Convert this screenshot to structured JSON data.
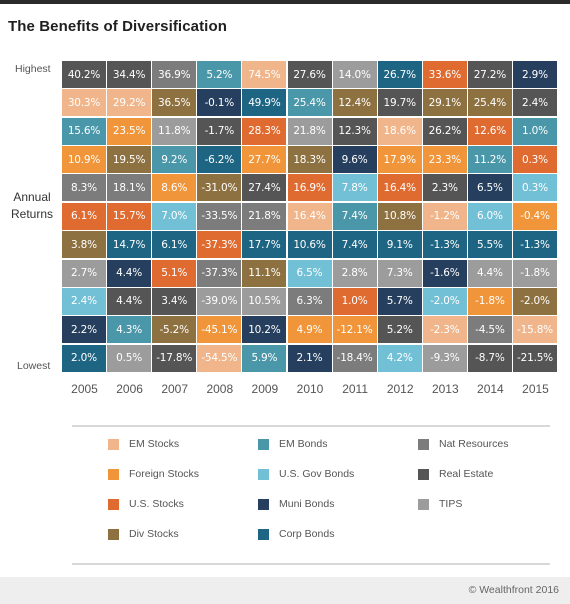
{
  "title": "The Benefits of Diversification",
  "labels": {
    "highest": "Highest",
    "lowest": "Lowest",
    "annual_line1": "Annual",
    "annual_line2": "Returns"
  },
  "copyright": "© Wealthfront 2016",
  "colors": {
    "EM Stocks": "#f0b58a",
    "Foreign Stocks": "#f0953a",
    "U.S. Stocks": "#e06b30",
    "Div Stocks": "#8e7140",
    "EM Bonds": "#4a97a9",
    "U.S. Gov Bonds": "#72c0d6",
    "Muni Bonds": "#263f5e",
    "Corp Bonds": "#1e6583",
    "Nat Resources": "#7c7c7c",
    "Real Estate": "#555555",
    "TIPS": "#9c9c9c"
  },
  "legend": [
    [
      "EM Stocks",
      "Foreign Stocks",
      "U.S. Stocks",
      "Div Stocks"
    ],
    [
      "EM Bonds",
      "U.S. Gov Bonds",
      "Muni Bonds",
      "Corp Bonds"
    ],
    [
      "Nat Resources",
      "Real Estate",
      "TIPS"
    ]
  ],
  "chart_data": {
    "type": "table",
    "title": "The Benefits of Diversification",
    "ylabel": "Annual Returns",
    "row_labels": {
      "top": "Highest",
      "bottom": "Lowest"
    },
    "years": [
      "2005",
      "2006",
      "2007",
      "2008",
      "2009",
      "2010",
      "2011",
      "2012",
      "2013",
      "2014",
      "2015"
    ],
    "columns": [
      [
        [
          "Real Estate",
          "40.2%"
        ],
        [
          "EM Stocks",
          "30.3%"
        ],
        [
          "EM Bonds",
          "15.6%"
        ],
        [
          "Foreign Stocks",
          "10.9%"
        ],
        [
          "Nat Resources",
          "8.3%"
        ],
        [
          "U.S. Stocks",
          "6.1%"
        ],
        [
          "Div Stocks",
          "3.8%"
        ],
        [
          "TIPS",
          "2.7%"
        ],
        [
          "U.S. Gov Bonds",
          "2.4%"
        ],
        [
          "Muni Bonds",
          "2.2%"
        ],
        [
          "Corp Bonds",
          "2.0%"
        ]
      ],
      [
        [
          "Real Estate",
          "34.4%"
        ],
        [
          "EM Stocks",
          "29.2%"
        ],
        [
          "Foreign Stocks",
          "23.5%"
        ],
        [
          "Div Stocks",
          "19.5%"
        ],
        [
          "Nat Resources",
          "18.1%"
        ],
        [
          "U.S. Stocks",
          "15.7%"
        ],
        [
          "Corp Bonds",
          "14.7%"
        ],
        [
          "Muni Bonds",
          "4.4%"
        ],
        [
          "Real Estate",
          "4.4%"
        ],
        [
          "EM Bonds",
          "4.3%"
        ],
        [
          "TIPS",
          "0.5%"
        ]
      ],
      [
        [
          "Nat Resources",
          "36.9%"
        ],
        [
          "Div Stocks",
          "36.5%"
        ],
        [
          "TIPS",
          "11.8%"
        ],
        [
          "EM Bonds",
          "9.2%"
        ],
        [
          "Foreign Stocks",
          "8.6%"
        ],
        [
          "U.S. Gov Bonds",
          "7.0%"
        ],
        [
          "Corp Bonds",
          "6.1%"
        ],
        [
          "U.S. Stocks",
          "5.1%"
        ],
        [
          "Real Estate",
          "3.4%"
        ],
        [
          "Div Stocks",
          "-5.2%"
        ],
        [
          "Real Estate",
          "-17.8%"
        ]
      ],
      [
        [
          "EM Bonds",
          "5.2%"
        ],
        [
          "Muni Bonds",
          "-0.1%"
        ],
        [
          "Real Estate",
          "-1.7%"
        ],
        [
          "Corp Bonds",
          "-6.2%"
        ],
        [
          "Div Stocks",
          "-31.0%"
        ],
        [
          "Nat Resources",
          "-33.5%"
        ],
        [
          "U.S. Stocks",
          "-37.3%"
        ],
        [
          "Nat Resources",
          "-37.3%"
        ],
        [
          "TIPS",
          "-39.0%"
        ],
        [
          "Foreign Stocks",
          "-45.1%"
        ],
        [
          "EM Stocks",
          "-54.5%"
        ]
      ],
      [
        [
          "EM Stocks",
          "74.5%"
        ],
        [
          "Corp Bonds",
          "49.9%"
        ],
        [
          "U.S. Stocks",
          "28.3%"
        ],
        [
          "Foreign Stocks",
          "27.7%"
        ],
        [
          "Real Estate",
          "27.4%"
        ],
        [
          "Nat Resources",
          "21.8%"
        ],
        [
          "Corp Bonds",
          "17.7%"
        ],
        [
          "Div Stocks",
          "11.1%"
        ],
        [
          "TIPS",
          "10.5%"
        ],
        [
          "Muni Bonds",
          "10.2%"
        ],
        [
          "EM Bonds",
          "5.9%"
        ]
      ],
      [
        [
          "Real Estate",
          "27.6%"
        ],
        [
          "EM Bonds",
          "25.4%"
        ],
        [
          "TIPS",
          "21.8%"
        ],
        [
          "Div Stocks",
          "18.3%"
        ],
        [
          "U.S. Stocks",
          "16.9%"
        ],
        [
          "EM Stocks",
          "16.4%"
        ],
        [
          "Corp Bonds",
          "10.6%"
        ],
        [
          "U.S. Gov Bonds",
          "6.5%"
        ],
        [
          "Nat Resources",
          "6.3%"
        ],
        [
          "Foreign Stocks",
          "4.9%"
        ],
        [
          "Muni Bonds",
          "2.1%"
        ]
      ],
      [
        [
          "TIPS",
          "14.0%"
        ],
        [
          "Div Stocks",
          "12.4%"
        ],
        [
          "Real Estate",
          "12.3%"
        ],
        [
          "Muni Bonds",
          "9.6%"
        ],
        [
          "U.S. Gov Bonds",
          "7.8%"
        ],
        [
          "EM Bonds",
          "7.4%"
        ],
        [
          "Corp Bonds",
          "7.4%"
        ],
        [
          "TIPS",
          "2.8%"
        ],
        [
          "U.S. Stocks",
          "1.0%"
        ],
        [
          "Foreign Stocks",
          "-12.1%"
        ],
        [
          "Nat Resources",
          "-18.4%"
        ]
      ],
      [
        [
          "Corp Bonds",
          "26.7%"
        ],
        [
          "Real Estate",
          "19.7%"
        ],
        [
          "EM Stocks",
          "18.6%"
        ],
        [
          "Foreign Stocks",
          "17.9%"
        ],
        [
          "U.S. Stocks",
          "16.4%"
        ],
        [
          "Div Stocks",
          "10.8%"
        ],
        [
          "Corp Bonds",
          "9.1%"
        ],
        [
          "TIPS",
          "7.3%"
        ],
        [
          "Muni Bonds",
          "5.7%"
        ],
        [
          "Real Estate",
          "5.2%"
        ],
        [
          "U.S. Gov Bonds",
          "4.2%"
        ]
      ],
      [
        [
          "U.S. Stocks",
          "33.6%"
        ],
        [
          "Div Stocks",
          "29.1%"
        ],
        [
          "Real Estate",
          "26.2%"
        ],
        [
          "Foreign Stocks",
          "23.3%"
        ],
        [
          "Real Estate",
          "2.3%"
        ],
        [
          "EM Stocks",
          "-1.2%"
        ],
        [
          "Corp Bonds",
          "-1.3%"
        ],
        [
          "Muni Bonds",
          "-1.6%"
        ],
        [
          "U.S. Gov Bonds",
          "-2.0%"
        ],
        [
          "EM Stocks",
          "-2.3%"
        ],
        [
          "TIPS",
          "-9.3%"
        ]
      ],
      [
        [
          "Real Estate",
          "27.2%"
        ],
        [
          "Div Stocks",
          "25.4%"
        ],
        [
          "U.S. Stocks",
          "12.6%"
        ],
        [
          "EM Bonds",
          "11.2%"
        ],
        [
          "Muni Bonds",
          "6.5%"
        ],
        [
          "U.S. Gov Bonds",
          "6.0%"
        ],
        [
          "Corp Bonds",
          "5.5%"
        ],
        [
          "TIPS",
          "4.4%"
        ],
        [
          "Foreign Stocks",
          "-1.8%"
        ],
        [
          "Nat Resources",
          "-4.5%"
        ],
        [
          "Real Estate",
          "-8.7%"
        ]
      ],
      [
        [
          "Muni Bonds",
          "2.9%"
        ],
        [
          "Real Estate",
          "2.4%"
        ],
        [
          "EM Bonds",
          "1.0%"
        ],
        [
          "U.S. Stocks",
          "0.3%"
        ],
        [
          "U.S. Gov Bonds",
          "0.3%"
        ],
        [
          "Foreign Stocks",
          "-0.4%"
        ],
        [
          "Corp Bonds",
          "-1.3%"
        ],
        [
          "TIPS",
          "-1.8%"
        ],
        [
          "Div Stocks",
          "-2.0%"
        ],
        [
          "EM Stocks",
          "-15.8%"
        ],
        [
          "Real Estate",
          "-21.5%"
        ]
      ]
    ]
  }
}
